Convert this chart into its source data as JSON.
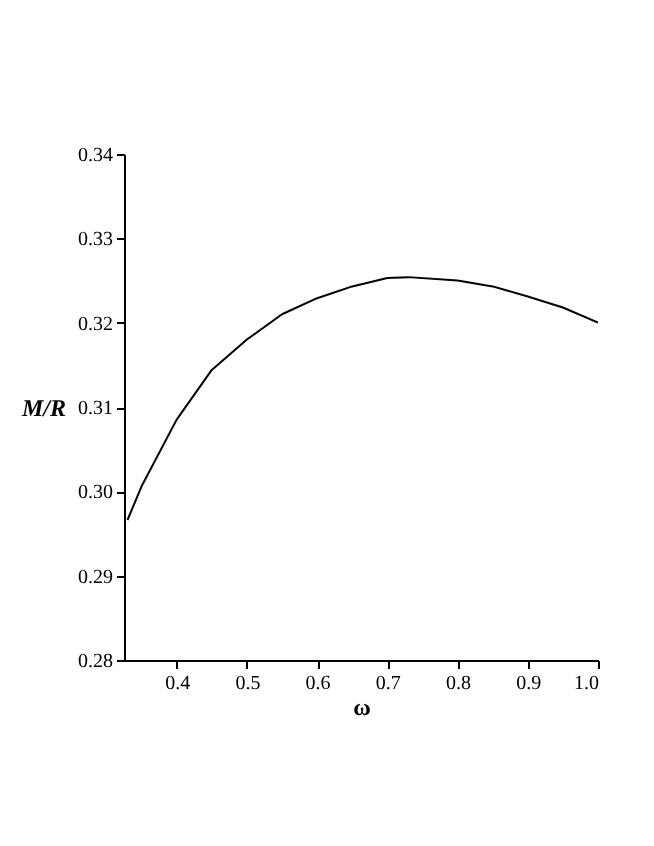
{
  "chart_data": {
    "type": "line",
    "xlabel": "ω",
    "ylabel": "M/R",
    "x": [
      0.33,
      0.35,
      0.4,
      0.45,
      0.5,
      0.55,
      0.6,
      0.65,
      0.7,
      0.73,
      0.8,
      0.85,
      0.9,
      0.95,
      1.0
    ],
    "series": [
      {
        "color": "#000000",
        "values": [
          0.2966,
          0.3006,
          0.3085,
          0.3144,
          0.318,
          0.321,
          0.3229,
          0.3243,
          0.3253,
          0.3254,
          0.325,
          0.3243,
          0.3231,
          0.3218,
          0.32
        ]
      }
    ],
    "xlim": [
      0.325,
      1.0
    ],
    "xticks": [
      0.4,
      0.5,
      0.6,
      0.7,
      0.8,
      0.9,
      {
        "value": 1.0,
        "label": "1.0"
      }
    ],
    "ylim": [
      0.28,
      0.34
    ],
    "yticks": [
      0.28,
      0.29,
      {
        "value": 0.3,
        "label": "0.30"
      },
      0.31,
      0.32,
      0.33,
      0.34
    ],
    "grid": false,
    "marker": "none",
    "line_style": "solid"
  }
}
